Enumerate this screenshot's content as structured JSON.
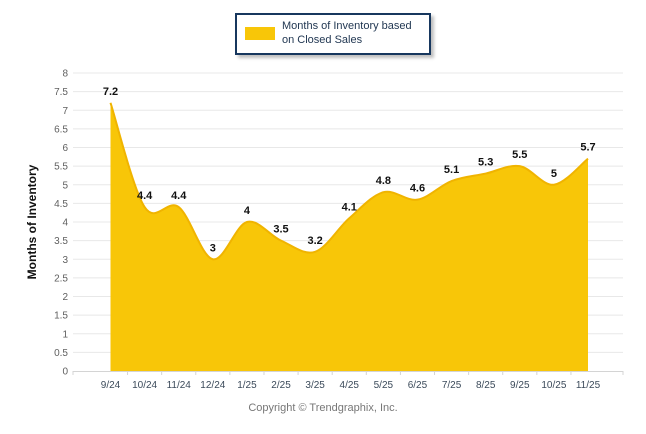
{
  "legend": {
    "label": "Months of Inventory based on Closed Sales",
    "swatch_color": "#F8C608"
  },
  "footer": {
    "copyright": "Copyright © Trendgraphix, Inc."
  },
  "colors": {
    "area_fill": "#F8C608",
    "line_stroke": "#F0B400",
    "gridline": "#E8E8E8",
    "axis_line": "#D4D4D4",
    "legend_border": "#17375E",
    "y_tick_text": "#5F5F5F",
    "x_tick_text": "#3B4A5A",
    "data_label_text": "#111111",
    "footer_text": "#777777"
  },
  "chart_data": {
    "type": "area",
    "title": "Months of Inventory based on Closed Sales",
    "categories": [
      "9/24",
      "10/24",
      "11/24",
      "12/24",
      "1/25",
      "2/25",
      "3/25",
      "4/25",
      "5/25",
      "6/25",
      "7/25",
      "8/25",
      "9/25",
      "10/25",
      "11/25"
    ],
    "values": [
      7.2,
      4.4,
      4.4,
      3,
      4,
      3.5,
      3.2,
      4.1,
      4.8,
      4.6,
      5.1,
      5.3,
      5.5,
      5,
      5.7
    ],
    "value_labels": [
      "7.2",
      "4.4",
      "4.4",
      "3",
      "4",
      "3.5",
      "3.2",
      "4.1",
      "4.8",
      "4.6",
      "5.1",
      "5.3",
      "5.5",
      "5",
      "5.7"
    ],
    "xlabel": "",
    "ylabel": "Months of Inventory",
    "ylim": [
      0,
      8
    ],
    "ytick_step": 0.5,
    "yticks": [
      "0",
      "0.5",
      "1",
      "1.5",
      "2",
      "2.5",
      "3",
      "3.5",
      "4",
      "4.5",
      "5",
      "5.5",
      "6",
      "6.5",
      "7",
      "7.5",
      "8"
    ],
    "grid": true,
    "smooth": true,
    "legend_position": "top",
    "fill_color": "#F8C608",
    "line_color": "#F0B400"
  }
}
